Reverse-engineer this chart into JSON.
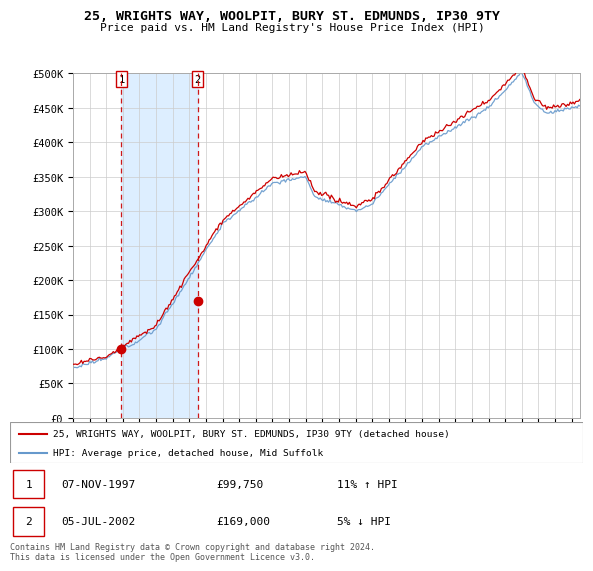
{
  "title": "25, WRIGHTS WAY, WOOLPIT, BURY ST. EDMUNDS, IP30 9TY",
  "subtitle": "Price paid vs. HM Land Registry's House Price Index (HPI)",
  "ylim": [
    0,
    500000
  ],
  "yticks": [
    0,
    50000,
    100000,
    150000,
    200000,
    250000,
    300000,
    350000,
    400000,
    450000,
    500000
  ],
  "ytick_labels": [
    "£0",
    "£50K",
    "£100K",
    "£150K",
    "£200K",
    "£250K",
    "£300K",
    "£350K",
    "£400K",
    "£450K",
    "£500K"
  ],
  "xlim_start": 1995.0,
  "xlim_end": 2025.5,
  "red_color": "#cc0000",
  "blue_color": "#6699cc",
  "shade_color": "#ddeeff",
  "background_color": "#ffffff",
  "grid_color": "#cccccc",
  "sale1_x": 1997.917,
  "sale1_y": 99750,
  "sale2_x": 2002.5,
  "sale2_y": 169000,
  "legend_line1": "25, WRIGHTS WAY, WOOLPIT, BURY ST. EDMUNDS, IP30 9TY (detached house)",
  "legend_line2": "HPI: Average price, detached house, Mid Suffolk",
  "table_row1": [
    "1",
    "07-NOV-1997",
    "£99,750",
    "11% ↑ HPI"
  ],
  "table_row2": [
    "2",
    "05-JUL-2002",
    "£169,000",
    "5% ↓ HPI"
  ],
  "footer": "Contains HM Land Registry data © Crown copyright and database right 2024.\nThis data is licensed under the Open Government Licence v3.0.",
  "dashed_x1": 1997.917,
  "dashed_x2": 2002.5
}
